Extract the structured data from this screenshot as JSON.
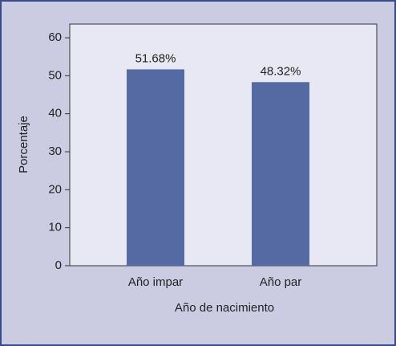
{
  "chart_data": {
    "type": "bar",
    "x_label": "Año de nacimiento",
    "y_label": "Porcentaje",
    "categories": [
      "Año impar",
      "Año par"
    ],
    "values": [
      51.68,
      48.32
    ],
    "value_labels": [
      "51.68%",
      "48.32%"
    ],
    "color": "#5569a3",
    "ylim": [
      0,
      63.6
    ],
    "yticks": [
      0,
      10,
      20,
      30,
      40,
      50,
      60
    ]
  }
}
